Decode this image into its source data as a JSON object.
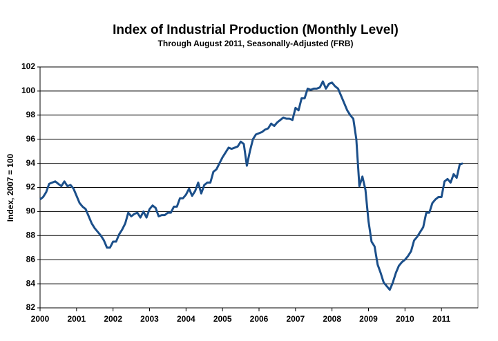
{
  "chart_data": {
    "type": "line",
    "title": "Index of Industrial Production (Monthly Level)",
    "subtitle": "Through August 2011, Seasonally-Adjusted (FRB)",
    "y_label": "Index, 2007 = 100",
    "categories": [
      "2000",
      null,
      null,
      null,
      null,
      null,
      null,
      null,
      null,
      null,
      null,
      null,
      "2001",
      null,
      null,
      null,
      null,
      null,
      null,
      null,
      null,
      null,
      null,
      null,
      "2002",
      null,
      null,
      null,
      null,
      null,
      null,
      null,
      null,
      null,
      null,
      null,
      "2003",
      null,
      null,
      null,
      null,
      null,
      null,
      null,
      null,
      null,
      null,
      null,
      "2004",
      null,
      null,
      null,
      null,
      null,
      null,
      null,
      null,
      null,
      null,
      null,
      "2005",
      null,
      null,
      null,
      null,
      null,
      null,
      null,
      null,
      null,
      null,
      null,
      "2006",
      null,
      null,
      null,
      null,
      null,
      null,
      null,
      null,
      null,
      null,
      null,
      "2007",
      null,
      null,
      null,
      null,
      null,
      null,
      null,
      null,
      null,
      null,
      null,
      "2008",
      null,
      null,
      null,
      null,
      null,
      null,
      null,
      null,
      null,
      null,
      null,
      "2009",
      null,
      null,
      null,
      null,
      null,
      null,
      null,
      null,
      null,
      null,
      null,
      "2010",
      null,
      null,
      null,
      null,
      null,
      null,
      null,
      null,
      null,
      null,
      null,
      "2011",
      null,
      null,
      null,
      null,
      null,
      null,
      null
    ],
    "values": [
      91.0,
      91.2,
      91.6,
      92.3,
      92.4,
      92.5,
      92.3,
      92.1,
      92.5,
      92.1,
      92.2,
      91.9,
      91.3,
      90.7,
      90.4,
      90.2,
      89.6,
      89.0,
      88.6,
      88.3,
      88.0,
      87.6,
      87.0,
      87.0,
      87.5,
      87.5,
      88.1,
      88.5,
      89.0,
      89.9,
      89.6,
      89.8,
      89.9,
      89.5,
      90.0,
      89.5,
      90.2,
      90.5,
      90.3,
      89.6,
      89.7,
      89.7,
      89.9,
      89.9,
      90.4,
      90.4,
      91.1,
      91.1,
      91.4,
      91.9,
      91.3,
      91.7,
      92.4,
      91.5,
      92.2,
      92.4,
      92.4,
      93.3,
      93.5,
      94.0,
      94.5,
      94.9,
      95.3,
      95.2,
      95.3,
      95.4,
      95.8,
      95.6,
      93.8,
      95.0,
      96.0,
      96.4,
      96.5,
      96.6,
      96.8,
      96.9,
      97.3,
      97.1,
      97.4,
      97.6,
      97.8,
      97.7,
      97.7,
      97.6,
      98.6,
      98.4,
      99.4,
      99.4,
      100.2,
      100.1,
      100.2,
      100.2,
      100.3,
      100.8,
      100.2,
      100.6,
      100.7,
      100.4,
      100.2,
      99.6,
      99.0,
      98.4,
      98.0,
      97.7,
      96.0,
      92.1,
      92.9,
      91.8,
      89.2,
      87.5,
      87.1,
      85.6,
      84.9,
      84.1,
      83.8,
      83.5,
      84.1,
      84.9,
      85.5,
      85.8,
      86.0,
      86.3,
      86.7,
      87.6,
      87.9,
      88.3,
      88.7,
      89.9,
      89.9,
      90.7,
      91.0,
      91.2,
      91.2,
      92.5,
      92.7,
      92.4,
      93.1,
      92.8,
      93.9,
      94.0
    ],
    "color": "#1b4f8a",
    "ylim": [
      82,
      102
    ],
    "yticks": [
      82,
      84,
      86,
      88,
      90,
      92,
      94,
      96,
      98,
      100,
      102
    ],
    "grid": true
  }
}
